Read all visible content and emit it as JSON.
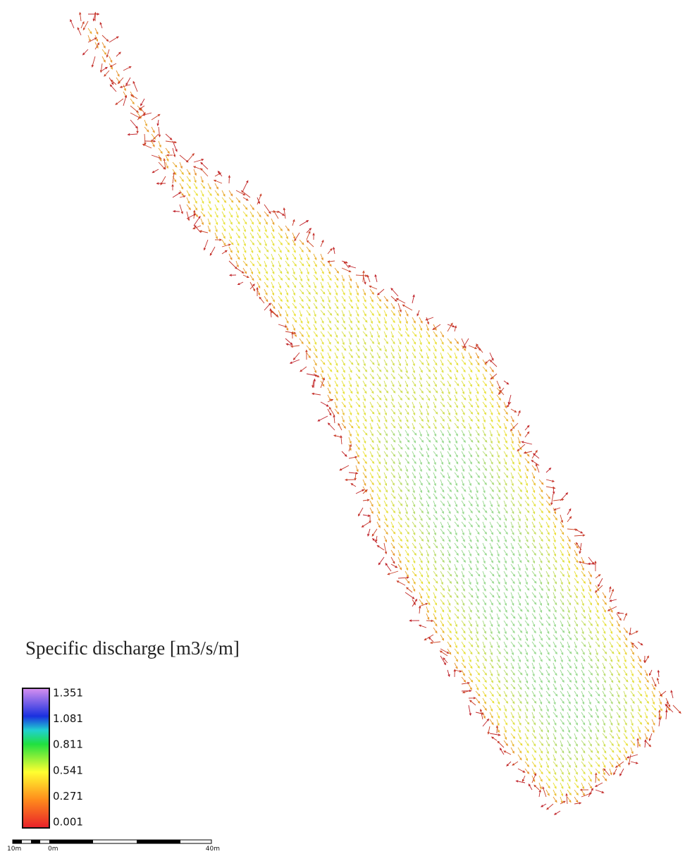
{
  "legend": {
    "title": "Specific discharge [m3/s/m]",
    "labels": [
      "1.351",
      "1.081",
      "0.811",
      "0.541",
      "0.271",
      "0.001"
    ]
  },
  "scale_bar": {
    "labels": [
      "10m",
      "0m",
      "40m"
    ]
  }
}
